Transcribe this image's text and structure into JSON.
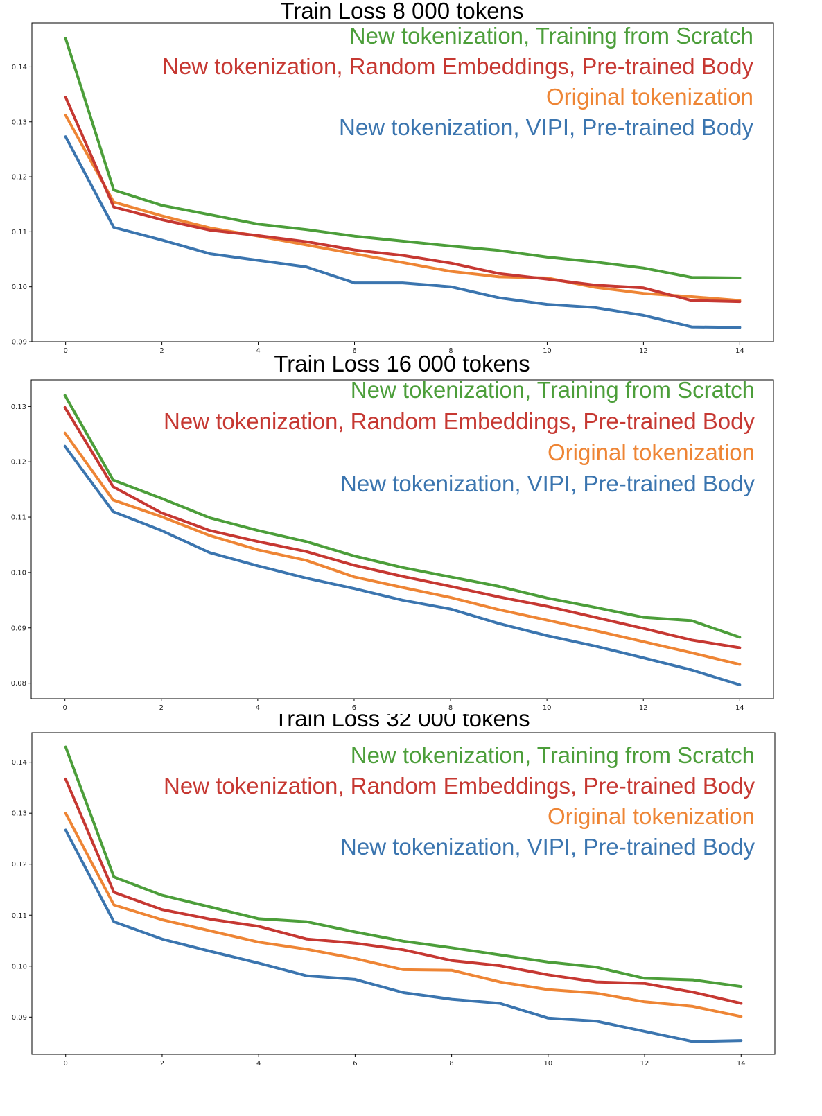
{
  "colors": {
    "green": "#4c9e3a",
    "red": "#c63832",
    "orange": "#ee8535",
    "blue": "#3b75af"
  },
  "chart_data": [
    {
      "type": "line",
      "title": "Train Loss 8 000 tokens",
      "xlabel": "",
      "ylabel": "",
      "x": [
        0,
        1,
        2,
        3,
        4,
        5,
        6,
        7,
        8,
        9,
        10,
        11,
        12,
        13,
        14
      ],
      "xlim": [
        -0.7,
        14.7
      ],
      "ylim": [
        0.09,
        0.148
      ],
      "xticks": [
        0,
        2,
        4,
        6,
        8,
        10,
        12,
        14
      ],
      "xtick_labels": [
        "0",
        "2",
        "4",
        "6",
        "8",
        "10",
        "12",
        "14"
      ],
      "yticks": [
        0.09,
        0.1,
        0.11,
        0.12,
        0.13,
        0.14
      ],
      "ytick_labels": [
        "0.09",
        "0.10",
        "0.11",
        "0.12",
        "0.13",
        "0.14"
      ],
      "legend_position": "top-right",
      "series": [
        {
          "name": "New tokenization, Training from Scratch",
          "color": "green",
          "values": [
            0.1452,
            0.1176,
            0.1148,
            0.1131,
            0.1114,
            0.1104,
            0.1092,
            0.1083,
            0.1074,
            0.1066,
            0.1054,
            0.1045,
            0.1034,
            0.1017,
            0.1016
          ]
        },
        {
          "name": "New tokenization, Random Embeddings, Pre-trained Body",
          "color": "red",
          "values": [
            0.1345,
            0.1145,
            0.1122,
            0.1103,
            0.1093,
            0.1082,
            0.1067,
            0.1057,
            0.1043,
            0.1024,
            0.1014,
            0.1003,
            0.0998,
            0.0975,
            0.0973
          ]
        },
        {
          "name": "Original tokenization",
          "color": "orange",
          "values": [
            0.1312,
            0.1154,
            0.1129,
            0.1107,
            0.1092,
            0.1076,
            0.106,
            0.1044,
            0.1028,
            0.1018,
            0.1016,
            0.0999,
            0.0988,
            0.0982,
            0.0975
          ]
        },
        {
          "name": "New tokenization, VIPI, Pre-trained Body",
          "color": "blue",
          "values": [
            0.1273,
            0.1108,
            0.1085,
            0.106,
            0.1048,
            0.1036,
            0.1007,
            0.1007,
            0.1,
            0.098,
            0.0968,
            0.0962,
            0.0948,
            0.0927,
            0.0926
          ]
        }
      ]
    },
    {
      "type": "line",
      "title": "Train Loss 16 000 tokens",
      "xlabel": "",
      "ylabel": "",
      "x": [
        0,
        1,
        2,
        3,
        4,
        5,
        6,
        7,
        8,
        9,
        10,
        11,
        12,
        13,
        14
      ],
      "xlim": [
        -0.7,
        14.7
      ],
      "ylim": [
        0.0772,
        0.1348
      ],
      "xticks": [
        0,
        2,
        4,
        6,
        8,
        10,
        12,
        14
      ],
      "xtick_labels": [
        "0",
        "2",
        "4",
        "6",
        "8",
        "10",
        "12",
        "14"
      ],
      "yticks": [
        0.08,
        0.09,
        0.1,
        0.11,
        0.12,
        0.13
      ],
      "ytick_labels": [
        "0.08",
        "0.09",
        "0.10",
        "0.11",
        "0.12",
        "0.13"
      ],
      "legend_position": "top-right",
      "series": [
        {
          "name": "New tokenization, Training from Scratch",
          "color": "green",
          "values": [
            0.132,
            0.1167,
            0.1134,
            0.1099,
            0.1076,
            0.1056,
            0.103,
            0.1009,
            0.0992,
            0.0975,
            0.0954,
            0.0937,
            0.0919,
            0.0913,
            0.0883
          ]
        },
        {
          "name": "New tokenization, Random Embeddings, Pre-trained Body",
          "color": "red",
          "values": [
            0.1298,
            0.1155,
            0.1108,
            0.1076,
            0.1056,
            0.1038,
            0.1013,
            0.0993,
            0.0975,
            0.0956,
            0.0939,
            0.0919,
            0.0899,
            0.0878,
            0.0864
          ]
        },
        {
          "name": "Original tokenization",
          "color": "orange",
          "values": [
            0.1252,
            0.1131,
            0.1101,
            0.1067,
            0.1041,
            0.1022,
            0.0992,
            0.0973,
            0.0955,
            0.0933,
            0.0914,
            0.0895,
            0.0875,
            0.0855,
            0.0834
          ]
        },
        {
          "name": "New tokenization, VIPI, Pre-trained Body",
          "color": "blue",
          "values": [
            0.1228,
            0.111,
            0.1076,
            0.1036,
            0.1012,
            0.099,
            0.0971,
            0.095,
            0.0934,
            0.0908,
            0.0886,
            0.0867,
            0.0846,
            0.0824,
            0.0797
          ]
        }
      ]
    },
    {
      "type": "line",
      "title": "Train Loss 32 000 tokens",
      "xlabel": "",
      "ylabel": "",
      "x": [
        0,
        1,
        2,
        3,
        4,
        5,
        6,
        7,
        8,
        9,
        10,
        11,
        12,
        13,
        14
      ],
      "xlim": [
        -0.7,
        14.7
      ],
      "ylim": [
        0.0827,
        0.1458
      ],
      "xticks": [
        0,
        2,
        4,
        6,
        8,
        10,
        12,
        14
      ],
      "xtick_labels": [
        "0",
        "2",
        "4",
        "6",
        "8",
        "10",
        "12",
        "14"
      ],
      "yticks": [
        0.09,
        0.1,
        0.11,
        0.12,
        0.13,
        0.14
      ],
      "ytick_labels": [
        "0.09",
        "0.10",
        "0.11",
        "0.12",
        "0.13",
        "0.14"
      ],
      "legend_position": "top-right",
      "series": [
        {
          "name": "New tokenization, Training from Scratch",
          "color": "green",
          "values": [
            0.143,
            0.1175,
            0.1139,
            0.1116,
            0.1093,
            0.1087,
            0.1067,
            0.1049,
            0.1036,
            0.1022,
            0.1008,
            0.0998,
            0.0976,
            0.0973,
            0.096
          ]
        },
        {
          "name": "New tokenization, Random Embeddings, Pre-trained Body",
          "color": "red",
          "values": [
            0.1367,
            0.1145,
            0.1111,
            0.1092,
            0.1078,
            0.1053,
            0.1045,
            0.1032,
            0.1011,
            0.1001,
            0.0983,
            0.0969,
            0.0966,
            0.0949,
            0.0927
          ]
        },
        {
          "name": "Original tokenization",
          "color": "orange",
          "values": [
            0.13,
            0.112,
            0.1091,
            0.1069,
            0.1047,
            0.1033,
            0.1015,
            0.0993,
            0.0992,
            0.0969,
            0.0954,
            0.0947,
            0.093,
            0.0921,
            0.0901
          ]
        },
        {
          "name": "New tokenization, VIPI, Pre-trained Body",
          "color": "blue",
          "values": [
            0.1267,
            0.1087,
            0.1053,
            0.1029,
            0.1006,
            0.0981,
            0.0974,
            0.0948,
            0.0935,
            0.0927,
            0.0898,
            0.0892,
            0.0872,
            0.0852,
            0.0854
          ]
        }
      ]
    }
  ]
}
